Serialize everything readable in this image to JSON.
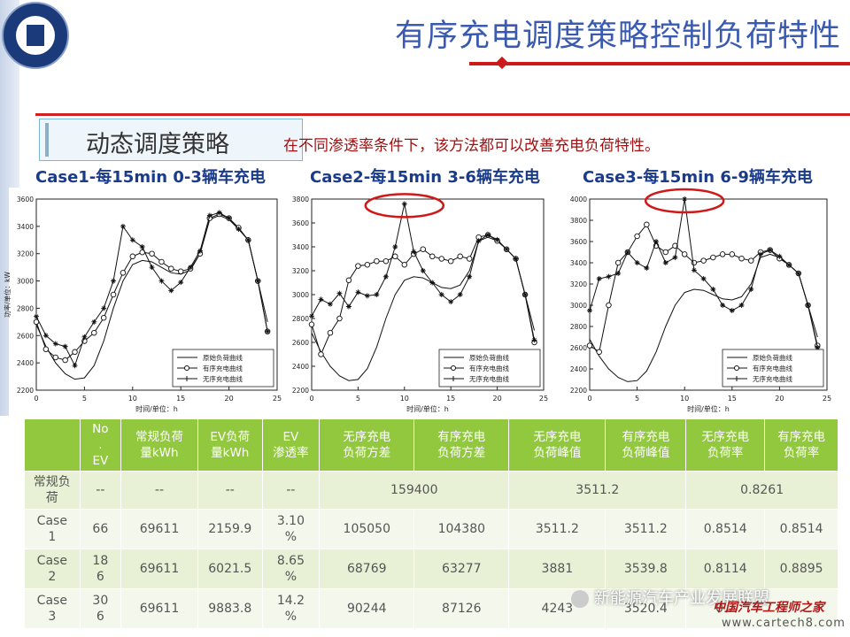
{
  "header": {
    "title": "有序充电调度策略控制负荷特性",
    "strategy_label": "动态调度策略",
    "strategy_note": "在不同渗透率条件下，该方法都可以改善充电负荷特性。"
  },
  "colors": {
    "title": "#3a5ab0",
    "accent_red": "#cc1a1a",
    "table_header": "#92c83e",
    "table_row_a": "#e8f0d6",
    "table_row_b": "#f4f8ec"
  },
  "chart_data": [
    {
      "type": "line",
      "title": "Case1-每15min 0-3辆车充电",
      "xlabel": "时间/单位：h",
      "ylabel": "功率/单位：kW",
      "xlim": [
        0,
        25
      ],
      "ylim": [
        2200,
        3600
      ],
      "xticks": [
        0,
        5,
        10,
        15,
        20,
        25
      ],
      "yticks": [
        2200,
        2400,
        2600,
        2800,
        3000,
        3200,
        3400,
        3600
      ],
      "legend": [
        "原始负荷曲线",
        "有序充电曲线",
        "无序充电曲线"
      ],
      "series": [
        {
          "name": "原始负荷曲线",
          "x": [
            0,
            1,
            2,
            3,
            4,
            5,
            6,
            7,
            8,
            9,
            10,
            11,
            12,
            13,
            14,
            15,
            16,
            17,
            18,
            19,
            20,
            21,
            22,
            23,
            24
          ],
          "values": [
            2680,
            2520,
            2400,
            2320,
            2280,
            2290,
            2380,
            2560,
            2800,
            3000,
            3120,
            3150,
            3140,
            3100,
            3060,
            3050,
            3080,
            3200,
            3450,
            3480,
            3450,
            3380,
            3300,
            3000,
            2700
          ]
        },
        {
          "name": "有序充电曲线",
          "x": [
            0,
            1,
            2,
            3,
            4,
            5,
            6,
            7,
            8,
            9,
            10,
            11,
            12,
            13,
            14,
            15,
            16,
            17,
            18,
            19,
            20,
            21,
            22,
            23,
            24
          ],
          "values": [
            2700,
            2500,
            2440,
            2420,
            2480,
            2560,
            2620,
            2730,
            2900,
            3060,
            3180,
            3210,
            3200,
            3140,
            3090,
            3070,
            3090,
            3200,
            3460,
            3490,
            3460,
            3390,
            3300,
            3000,
            2630
          ]
        },
        {
          "name": "无序充电曲线",
          "x": [
            0,
            1,
            2,
            3,
            4,
            5,
            6,
            7,
            8,
            9,
            10,
            11,
            12,
            13,
            14,
            15,
            16,
            17,
            18,
            19,
            20,
            21,
            22,
            23,
            24
          ],
          "values": [
            2740,
            2600,
            2540,
            2520,
            2380,
            2590,
            2700,
            2800,
            3000,
            3400,
            3300,
            3250,
            3100,
            3000,
            2930,
            2990,
            3100,
            3220,
            3480,
            3500,
            3460,
            3380,
            3300,
            3000,
            2630
          ]
        }
      ]
    },
    {
      "type": "line",
      "title": "Case2-每15min 3-6辆车充电",
      "xlabel": "时间/单位：h",
      "ylabel": "",
      "xlim": [
        0,
        25
      ],
      "ylim": [
        2200,
        3800
      ],
      "xticks": [
        0,
        5,
        10,
        15,
        20,
        25
      ],
      "yticks": [
        2200,
        2400,
        2600,
        2800,
        3000,
        3200,
        3400,
        3600,
        3800
      ],
      "legend": [
        "原始负荷曲线",
        "有序充电曲线",
        "无序充电曲线"
      ],
      "annotation": "red-ellipse-peak",
      "series": [
        {
          "name": "原始负荷曲线",
          "x": [
            0,
            1,
            2,
            3,
            4,
            5,
            6,
            7,
            8,
            9,
            10,
            11,
            12,
            13,
            14,
            15,
            16,
            17,
            18,
            19,
            20,
            21,
            22,
            23,
            24
          ],
          "values": [
            2680,
            2520,
            2400,
            2320,
            2280,
            2290,
            2380,
            2560,
            2800,
            3000,
            3120,
            3150,
            3140,
            3100,
            3060,
            3050,
            3080,
            3200,
            3450,
            3480,
            3450,
            3380,
            3300,
            3000,
            2700
          ]
        },
        {
          "name": "有序充电曲线",
          "x": [
            0,
            1,
            2,
            3,
            4,
            5,
            6,
            7,
            8,
            9,
            10,
            11,
            12,
            13,
            14,
            15,
            16,
            17,
            18,
            19,
            20,
            21,
            22,
            23,
            24
          ],
          "values": [
            2750,
            2500,
            2680,
            2800,
            3120,
            3240,
            3250,
            3280,
            3280,
            3320,
            3250,
            3340,
            3380,
            3320,
            3300,
            3280,
            3320,
            3300,
            3480,
            3500,
            3450,
            3380,
            3300,
            3000,
            2600
          ]
        },
        {
          "name": "无序充电曲线",
          "x": [
            0,
            1,
            2,
            3,
            4,
            5,
            6,
            7,
            8,
            9,
            10,
            11,
            12,
            13,
            14,
            15,
            16,
            17,
            18,
            19,
            20,
            21,
            22,
            23,
            24
          ],
          "values": [
            2820,
            2960,
            2920,
            3010,
            2900,
            3020,
            2990,
            3000,
            3150,
            3400,
            3760,
            3360,
            3200,
            3100,
            3000,
            2940,
            3000,
            3150,
            3450,
            3500,
            3460,
            3380,
            3300,
            3000,
            2620
          ]
        }
      ]
    },
    {
      "type": "line",
      "title": "Case3-每15min 6-9辆车充电",
      "xlabel": "时间/单位：h",
      "ylabel": "",
      "xlim": [
        0,
        25
      ],
      "ylim": [
        2200,
        4000
      ],
      "xticks": [
        0,
        5,
        10,
        15,
        20,
        25
      ],
      "yticks": [
        2200,
        2400,
        2600,
        2800,
        3000,
        3200,
        3400,
        3600,
        3800,
        4000
      ],
      "legend": [
        "原始负荷曲线",
        "有序充电曲线",
        "无序充电曲线"
      ],
      "annotation": "red-ellipse-peak",
      "series": [
        {
          "name": "原始负荷曲线",
          "x": [
            0,
            1,
            2,
            3,
            4,
            5,
            6,
            7,
            8,
            9,
            10,
            11,
            12,
            13,
            14,
            15,
            16,
            17,
            18,
            19,
            20,
            21,
            22,
            23,
            24
          ],
          "values": [
            2680,
            2520,
            2400,
            2320,
            2280,
            2290,
            2380,
            2560,
            2800,
            3000,
            3120,
            3150,
            3140,
            3100,
            3060,
            3050,
            3080,
            3200,
            3450,
            3480,
            3450,
            3380,
            3300,
            3000,
            2700
          ]
        },
        {
          "name": "有序充电曲线",
          "x": [
            0,
            1,
            2,
            3,
            4,
            5,
            6,
            7,
            8,
            9,
            10,
            11,
            12,
            13,
            14,
            15,
            16,
            17,
            18,
            19,
            20,
            21,
            22,
            23,
            24
          ],
          "values": [
            2620,
            2560,
            3000,
            3400,
            3500,
            3650,
            3760,
            3560,
            3500,
            3560,
            3480,
            3400,
            3420,
            3450,
            3480,
            3480,
            3440,
            3420,
            3500,
            3520,
            3440,
            3380,
            3300,
            3000,
            2620
          ]
        },
        {
          "name": "无序充电曲线",
          "x": [
            0,
            1,
            2,
            3,
            4,
            5,
            6,
            7,
            8,
            9,
            10,
            11,
            12,
            13,
            14,
            15,
            16,
            17,
            18,
            19,
            20,
            21,
            22,
            23,
            24
          ],
          "values": [
            2950,
            3250,
            3270,
            3300,
            3500,
            3400,
            3350,
            3600,
            3400,
            3450,
            4000,
            3330,
            3250,
            3150,
            3000,
            2950,
            3000,
            3150,
            3480,
            3520,
            3460,
            3380,
            3300,
            3000,
            2600
          ]
        }
      ]
    }
  ],
  "table": {
    "headers": [
      "",
      "No\n.\nEV",
      "常规负荷\n量kWh",
      "EV负荷\n量kWh",
      "EV\n渗透率",
      "无序充电\n负荷方差",
      "有序充电\n负荷方差",
      "无序充电\n负荷峰值",
      "有序充电\n负荷峰值",
      "无序充电\n负荷率",
      "有序充电\n负荷率"
    ],
    "rows": [
      {
        "label": "常规负\n荷",
        "ev": "--",
        "base": "--",
        "evload": "--",
        "pen": "--",
        "var_merged": "159400",
        "peak_merged": "3511.2",
        "rate_merged": "0.8261"
      },
      {
        "label": "Case\n1",
        "cells": [
          "66",
          "69611",
          "2159.9",
          "3.10\n%",
          "105050",
          "104380",
          "3511.2",
          "3511.2",
          "0.8514",
          "0.8514"
        ]
      },
      {
        "label": "Case\n2",
        "cells": [
          "18\n6",
          "69611",
          "6021.5",
          "8.65\n%",
          "68769",
          "63277",
          "3881",
          "3539.8",
          "0.8114",
          "0.8895"
        ]
      },
      {
        "label": "Case\n3",
        "cells": [
          "30\n6",
          "69611",
          "9883.8",
          "14.2\n%",
          "90244",
          "87126",
          "4243",
          "3520.4",
          "0.7",
          ""
        ]
      }
    ]
  },
  "watermark": {
    "text": "新能源汽车产业发展联盟",
    "brand": "中国汽车工程师之家",
    "url": "www.cartech8.com"
  }
}
